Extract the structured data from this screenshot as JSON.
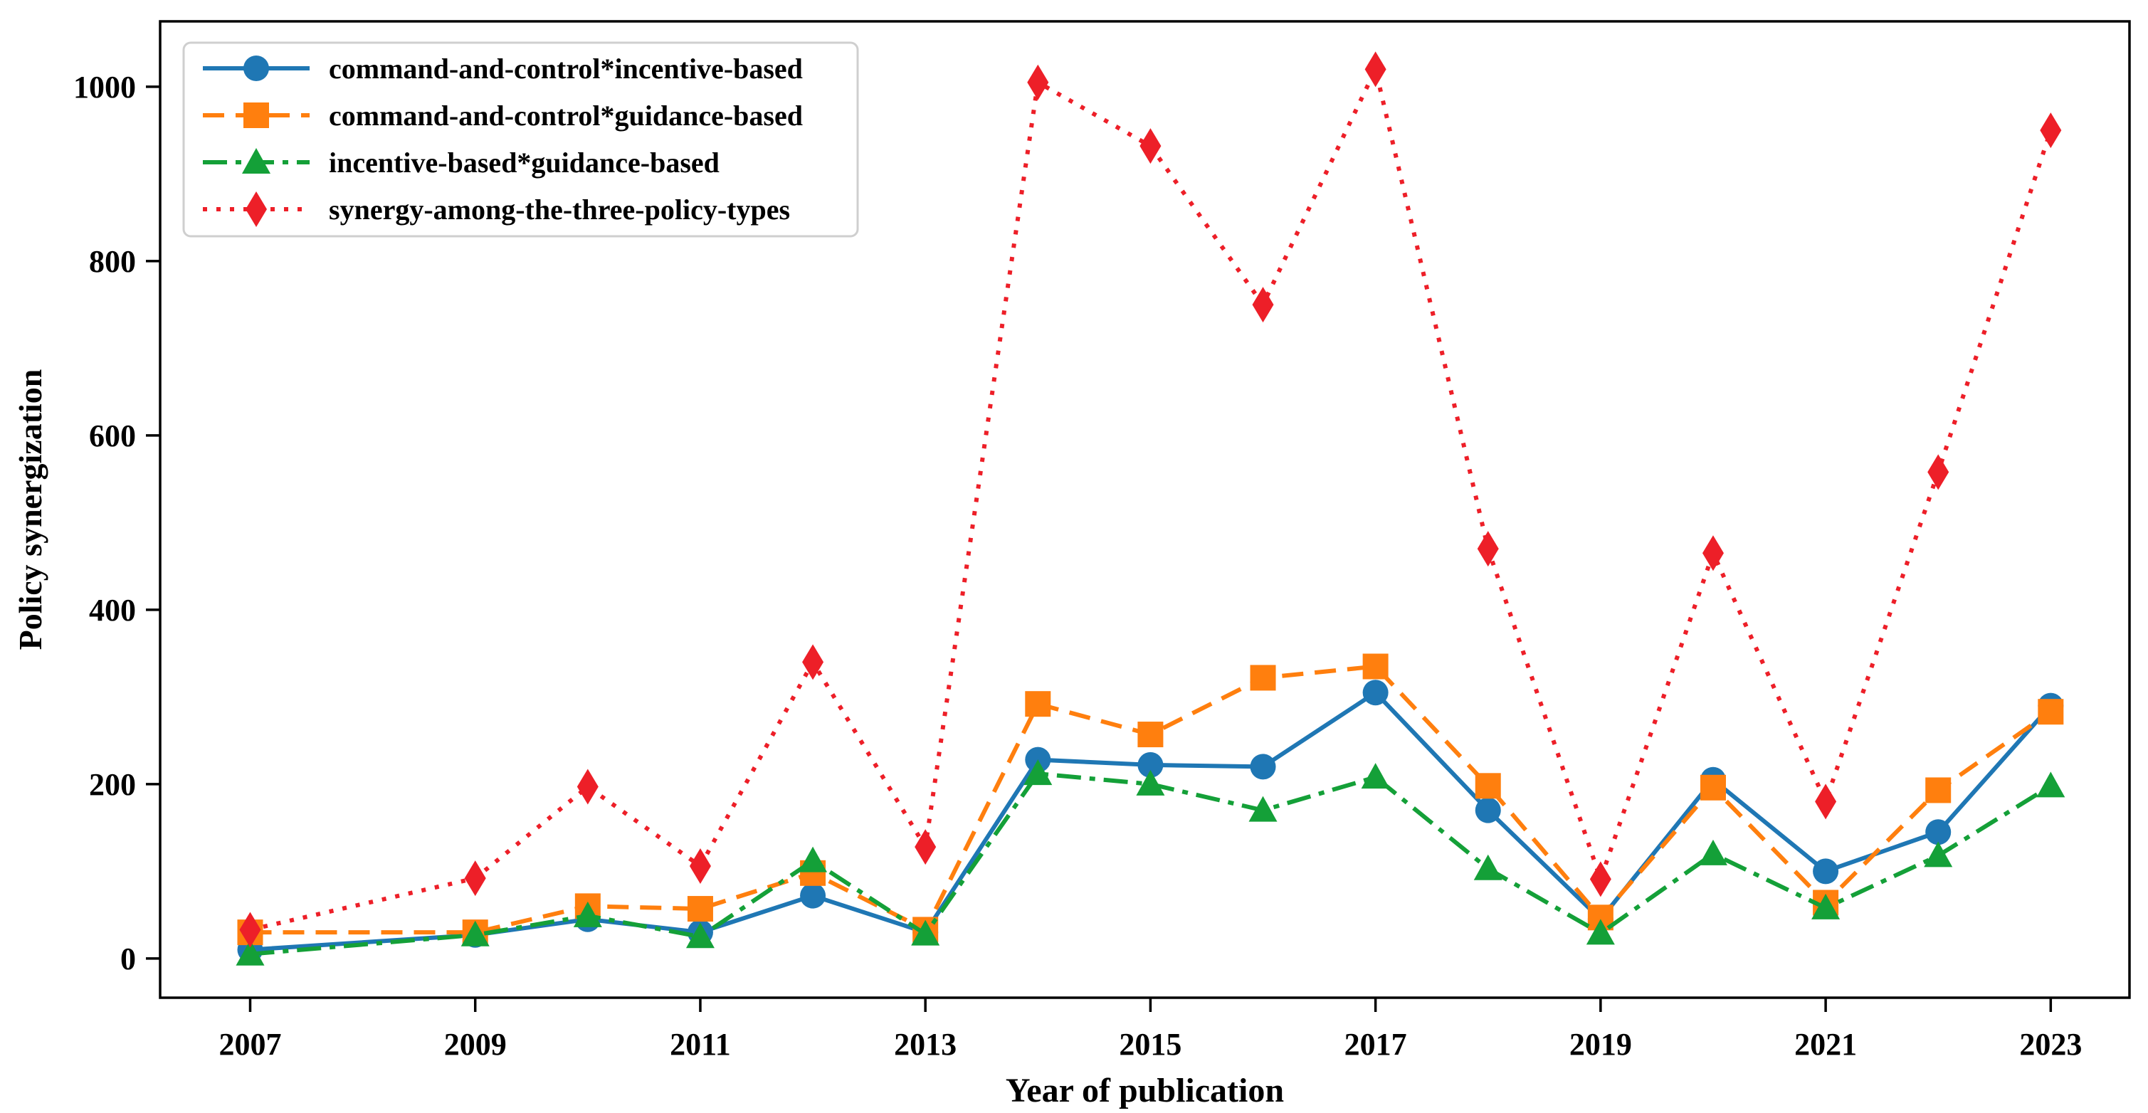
{
  "figure": {
    "background": "#ffffff",
    "frame_color": "#000000"
  },
  "chart_data": {
    "type": "line",
    "title": "",
    "xlabel": "Year of publication",
    "ylabel": "Policy synergization",
    "x": [
      2007,
      2009,
      2010,
      2011,
      2012,
      2013,
      2014,
      2015,
      2016,
      2017,
      2018,
      2019,
      2020,
      2021,
      2022,
      2023
    ],
    "xticks": [
      2007,
      2009,
      2011,
      2013,
      2015,
      2017,
      2019,
      2021,
      2023
    ],
    "yticks": [
      0,
      200,
      400,
      600,
      800,
      1000
    ],
    "xlim": [
      2006.2,
      2023.7
    ],
    "ylim": [
      -45,
      1075
    ],
    "grid": false,
    "legend_position": "upper-left",
    "series": [
      {
        "name": "command-and-control*incentive-based",
        "color": "#1f77b4",
        "linestyle": "solid",
        "marker": "circle",
        "values": [
          10,
          27,
          45,
          30,
          72,
          30,
          228,
          222,
          220,
          305,
          170,
          45,
          205,
          100,
          145,
          290
        ]
      },
      {
        "name": "command-and-control*guidance-based",
        "color": "#ff7f0e",
        "linestyle": "dashed",
        "marker": "square",
        "values": [
          30,
          30,
          60,
          57,
          98,
          33,
          292,
          257,
          322,
          335,
          198,
          47,
          196,
          64,
          193,
          283
        ]
      },
      {
        "name": "incentive-based*guidance-based",
        "color": "#14a038",
        "linestyle": "dashdot",
        "marker": "triangle",
        "values": [
          5,
          27,
          49,
          25,
          112,
          28,
          212,
          200,
          170,
          208,
          103,
          29,
          120,
          58,
          118,
          198
        ]
      },
      {
        "name": "synergy-among-the-three-policy-types",
        "color": "#ed1f28",
        "linestyle": "dotted",
        "marker": "diamond",
        "values": [
          33,
          92,
          197,
          106,
          340,
          128,
          1005,
          932,
          750,
          1020,
          470,
          91,
          465,
          180,
          558,
          950
        ]
      }
    ]
  }
}
